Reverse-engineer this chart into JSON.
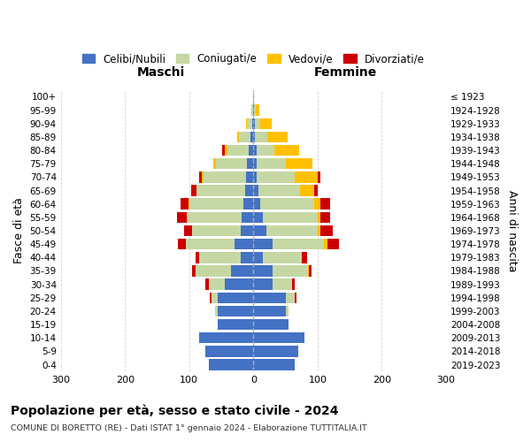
{
  "age_groups": [
    "0-4",
    "5-9",
    "10-14",
    "15-19",
    "20-24",
    "25-29",
    "30-34",
    "35-39",
    "40-44",
    "45-49",
    "50-54",
    "55-59",
    "60-64",
    "65-69",
    "70-74",
    "75-79",
    "80-84",
    "85-89",
    "90-94",
    "95-99",
    "100+"
  ],
  "birth_years": [
    "2019-2023",
    "2014-2018",
    "2009-2013",
    "2004-2008",
    "1999-2003",
    "1994-1998",
    "1989-1993",
    "1984-1988",
    "1979-1983",
    "1974-1978",
    "1969-1973",
    "1964-1968",
    "1959-1963",
    "1954-1958",
    "1949-1953",
    "1944-1948",
    "1939-1943",
    "1934-1938",
    "1929-1933",
    "1924-1928",
    "≤ 1923"
  ],
  "maschi": {
    "celibi": [
      70,
      75,
      85,
      55,
      55,
      55,
      45,
      35,
      20,
      30,
      20,
      18,
      15,
      13,
      12,
      10,
      8,
      5,
      2,
      1,
      0
    ],
    "coniugati": [
      0,
      0,
      0,
      0,
      5,
      10,
      25,
      55,
      65,
      75,
      75,
      85,
      85,
      75,
      65,
      48,
      32,
      18,
      8,
      2,
      0
    ],
    "vedovi": [
      0,
      0,
      0,
      0,
      0,
      0,
      0,
      0,
      0,
      0,
      1,
      1,
      1,
      1,
      3,
      4,
      5,
      2,
      1,
      0,
      0
    ],
    "divorziati": [
      0,
      0,
      0,
      0,
      0,
      3,
      5,
      5,
      5,
      12,
      12,
      15,
      12,
      8,
      5,
      0,
      3,
      0,
      0,
      0,
      0
    ]
  },
  "femmine": {
    "nubili": [
      65,
      70,
      80,
      55,
      50,
      50,
      30,
      30,
      15,
      30,
      20,
      15,
      10,
      8,
      5,
      5,
      5,
      3,
      2,
      1,
      0
    ],
    "coniugate": [
      0,
      0,
      0,
      0,
      5,
      15,
      30,
      55,
      60,
      80,
      80,
      85,
      85,
      65,
      60,
      45,
      28,
      18,
      8,
      3,
      0
    ],
    "vedove": [
      0,
      0,
      0,
      0,
      0,
      0,
      0,
      1,
      1,
      5,
      5,
      5,
      10,
      22,
      35,
      42,
      38,
      32,
      18,
      5,
      1
    ],
    "divorziate": [
      0,
      0,
      0,
      0,
      0,
      2,
      5,
      5,
      8,
      18,
      18,
      15,
      15,
      5,
      5,
      0,
      0,
      0,
      0,
      0,
      0
    ]
  },
  "colors": {
    "celibi": "#4472c4",
    "coniugati": "#c5d8a4",
    "vedovi": "#ffc000",
    "divorziati": "#cc0000"
  },
  "legend_labels": [
    "Celibi/Nubili",
    "Coniugati/e",
    "Vedovi/e",
    "Divorziati/e"
  ],
  "title": "Popolazione per età, sesso e stato civile - 2024",
  "subtitle": "COMUNE DI BORETTO (RE) - Dati ISTAT 1° gennaio 2024 - Elaborazione TUTTITALIA.IT",
  "xlabel_left": "Maschi",
  "xlabel_right": "Femmine",
  "ylabel_left": "Fasce di età",
  "ylabel_right": "Anni di nascita",
  "xlim": 300,
  "bg_color": "#ffffff",
  "grid_color": "#cccccc"
}
